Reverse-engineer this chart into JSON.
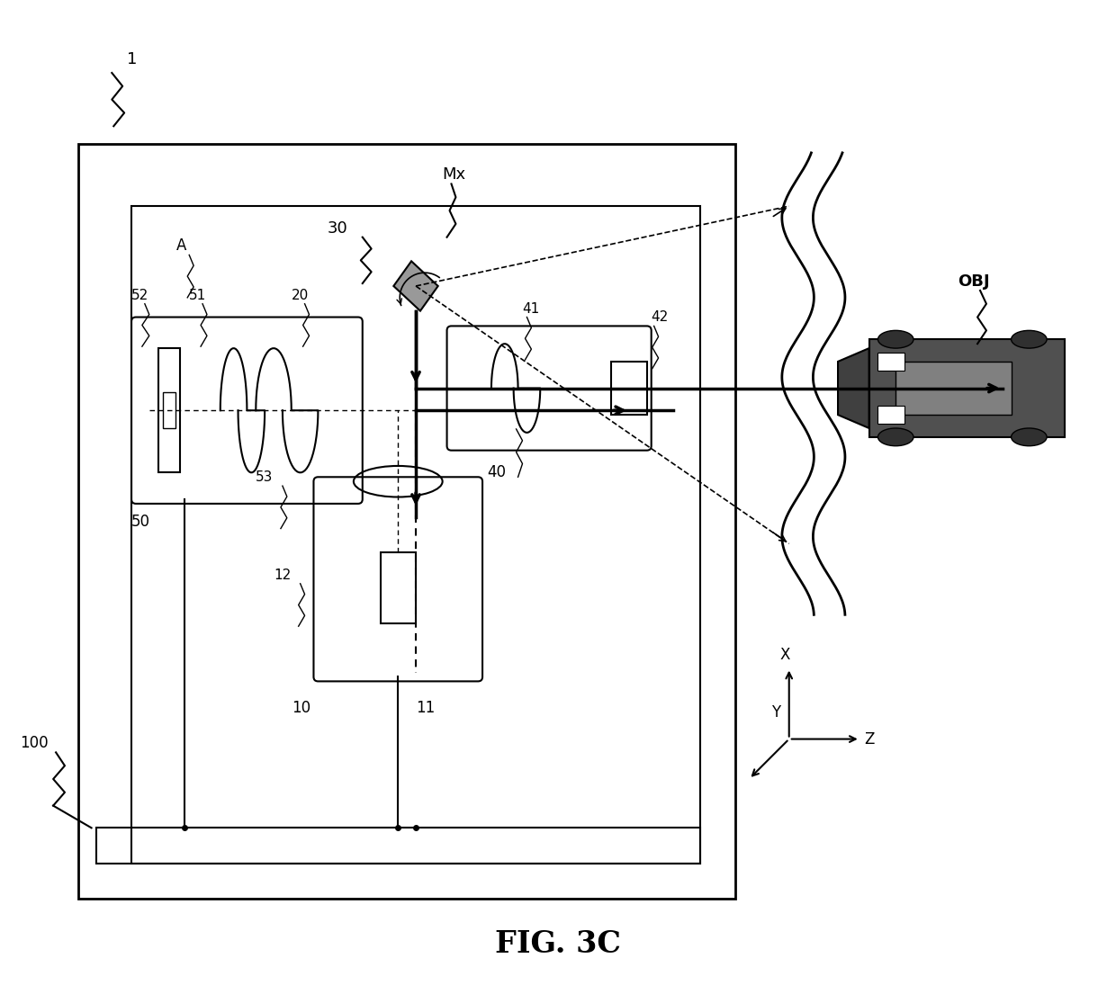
{
  "title": "FIG. 3C",
  "bg_color": "#ffffff",
  "line_color": "#000000",
  "fig_width": 12.4,
  "fig_height": 11.05,
  "labels": {
    "fig_title": "FIG. 3C",
    "label_1": "1",
    "label_Mx": "Mx",
    "label_30": "30",
    "label_A": "A",
    "label_52": "52",
    "label_51": "51",
    "label_20": "20",
    "label_50": "50",
    "label_53": "53",
    "label_12": "12",
    "label_10": "10",
    "label_11": "11",
    "label_41": "41",
    "label_42": "42",
    "label_40": "40",
    "label_100": "100",
    "label_OBJ": "OBJ",
    "label_X": "X",
    "label_Y": "Y",
    "label_Z": "Z"
  }
}
